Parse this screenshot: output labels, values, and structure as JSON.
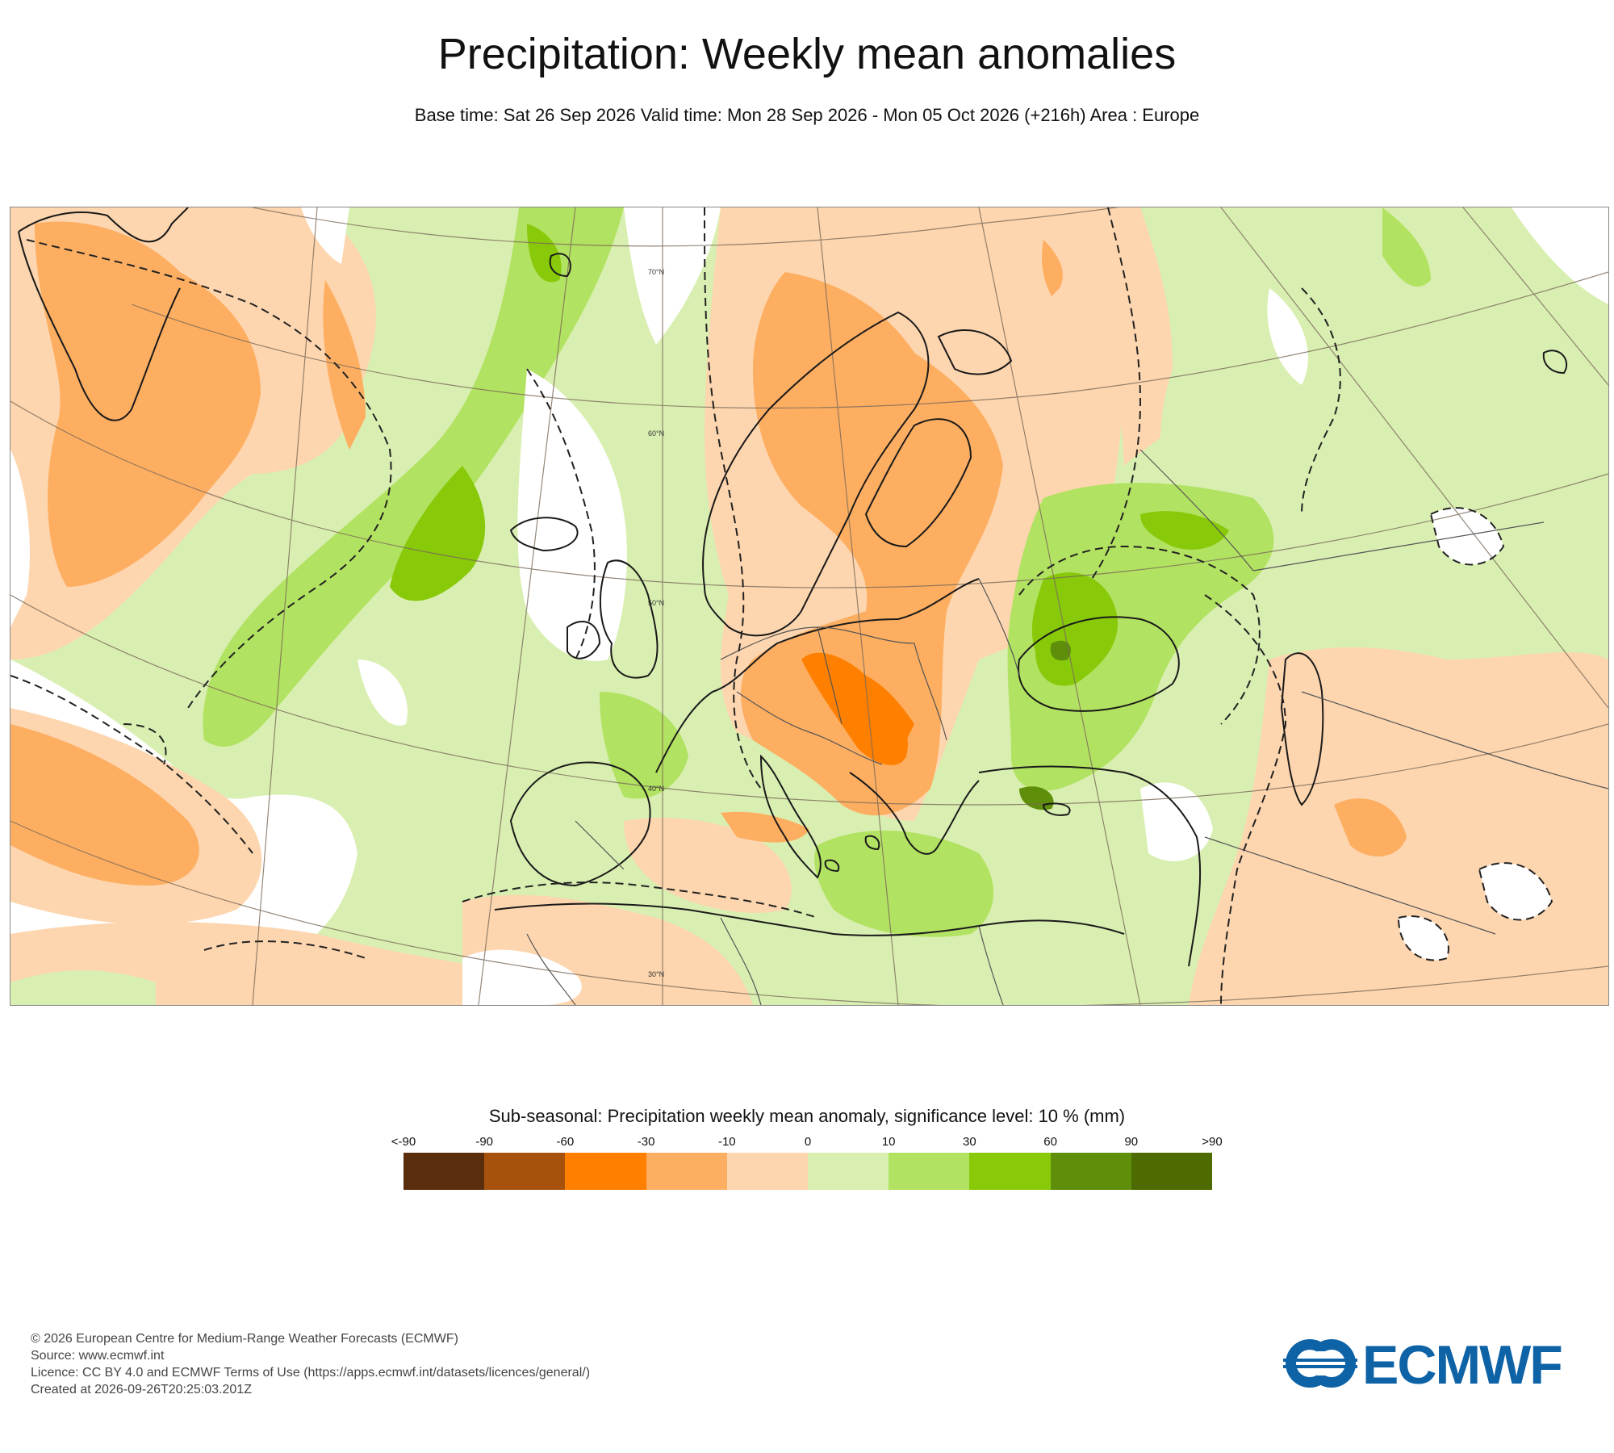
{
  "header": {
    "title": "Precipitation: Weekly mean anomalies",
    "subtitle": "Base time: Sat 26 Sep 2026 Valid time: Mon 28 Sep 2026 - Mon 05 Oct 2026 (+216h) Area : Europe"
  },
  "map": {
    "area": "Europe",
    "graticule_labels": [
      "70°N",
      "60°N",
      "50°N",
      "40°N",
      "30°N"
    ],
    "colors": {
      "background_small_positive": "#d9efb1",
      "not_significant": "#ffffff",
      "coastline": "#1a1a1a",
      "border": "#555555",
      "significance_contour": "#222222"
    },
    "features": [
      "strong dry anomaly over Scandinavia and central/eastern Europe",
      "wet anomaly over Black Sea region and central North Atlantic"
    ]
  },
  "legend": {
    "title": "Sub-seasonal: Precipitation weekly mean anomaly, significance level: 10 % (mm)",
    "boundary_labels": [
      "<-90",
      "-90",
      "-60",
      "-30",
      "-10",
      "0",
      "10",
      "30",
      "60",
      "90",
      ">90"
    ],
    "colors": [
      "#5a2d0c",
      "#a6510c",
      "#ff7f00",
      "#fdae61",
      "#fdd5ae",
      "#d9efb1",
      "#b2e261",
      "#88c90a",
      "#5e8e0a",
      "#4d6b00"
    ]
  },
  "footer": {
    "lines": [
      "© 2026 European Centre for Medium-Range Weather Forecasts (ECMWF)",
      "Source: www.ecmwf.int",
      "Licence: CC BY 4.0 and ECMWF Terms of Use (https://apps.ecmwf.int/datasets/licences/general/)",
      "Created at 2026-09-26T20:25:03.201Z"
    ],
    "logo_text": "ECMWF"
  }
}
